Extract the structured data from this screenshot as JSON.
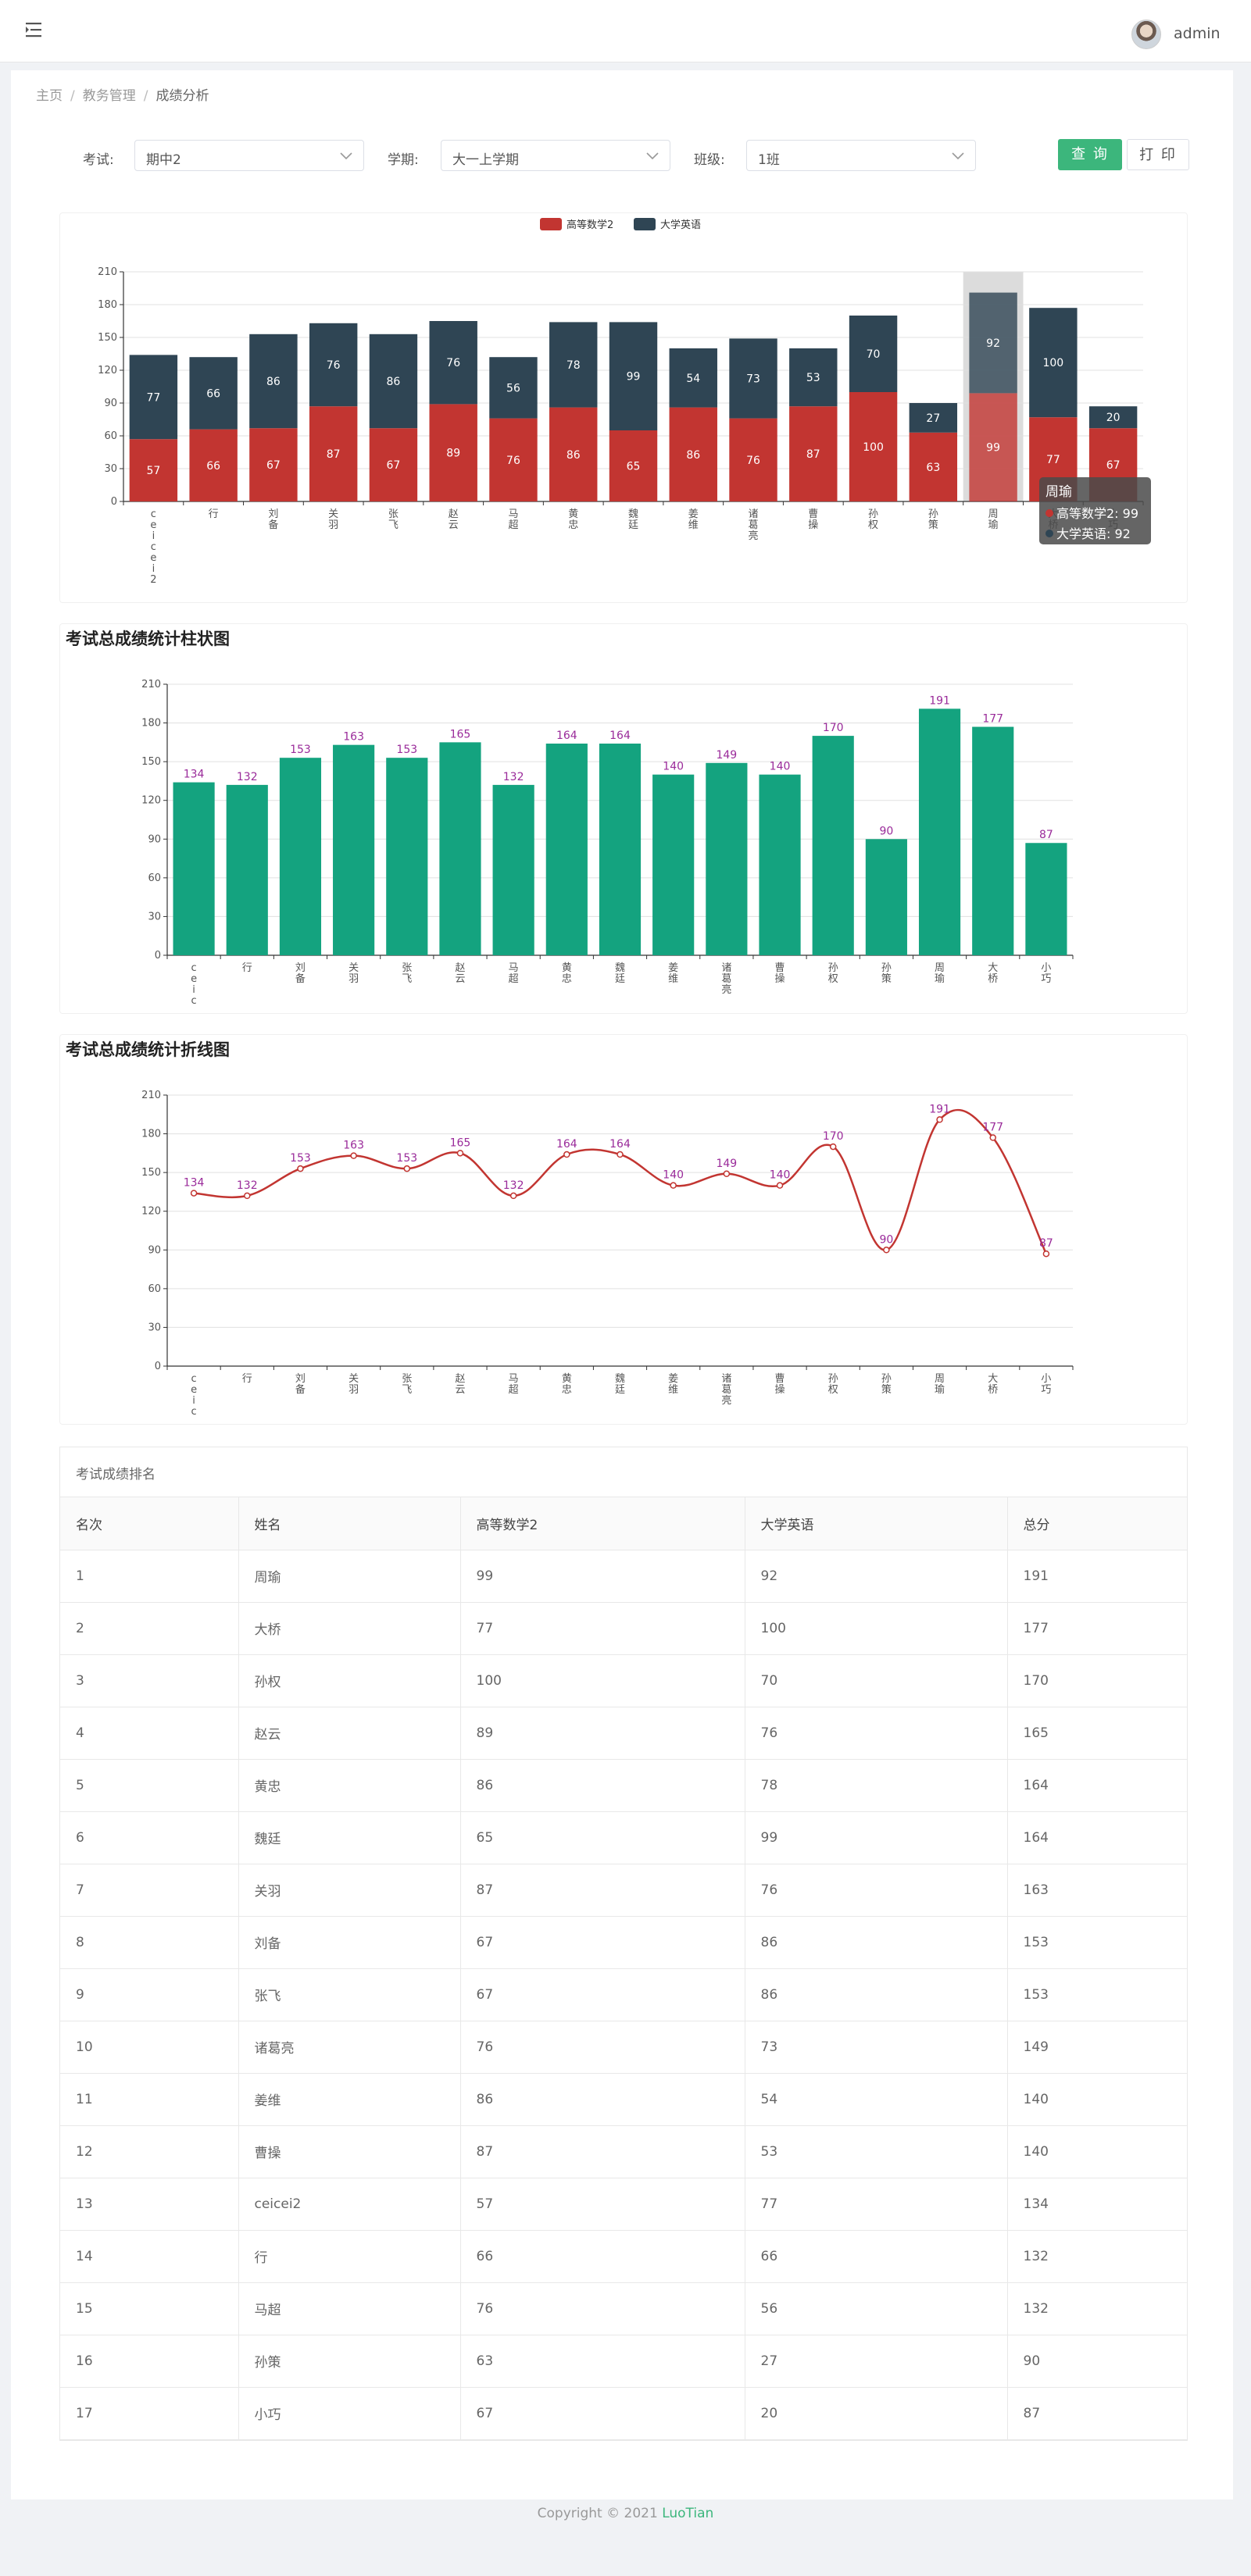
{
  "header": {
    "user": "admin"
  },
  "breadcrumb": [
    "主页",
    "教务管理",
    "成绩分析"
  ],
  "filters": {
    "exam_label": "考试:",
    "exam_value": "期中2",
    "term_label": "学期:",
    "term_value": "大一上学期",
    "class_label": "班级:",
    "class_value": "1班",
    "query_button": "查 询",
    "print_button": "打 印"
  },
  "chart_titles": {
    "bar": "考试总成绩统计柱状图",
    "line": "考试总成绩统计折线图"
  },
  "tooltip": {
    "name": "周瑜",
    "line1": "高等数学2: 99",
    "line2": "大学英语: 92"
  },
  "colors": {
    "math": "#c23531",
    "english": "#2f4554",
    "total_bar": "#14a37f",
    "total_line": "#c23531",
    "label_purple": "#9a2b9a"
  },
  "chart_data": [
    {
      "type": "bar",
      "stacked": true,
      "legend": [
        "高等数学2",
        "大学英语"
      ],
      "categories": [
        "ceicei2",
        "行",
        "刘备",
        "关羽",
        "张飞",
        "赵云",
        "马超",
        "黄忠",
        "魏廷",
        "姜维",
        "诸葛亮",
        "曹操",
        "孙权",
        "孙策",
        "周瑜",
        "大桥",
        "小巧"
      ],
      "series": [
        {
          "name": "高等数学2",
          "values": [
            57,
            66,
            67,
            87,
            67,
            89,
            76,
            86,
            65,
            86,
            76,
            87,
            100,
            63,
            99,
            77,
            67
          ]
        },
        {
          "name": "大学英语",
          "values": [
            77,
            66,
            86,
            76,
            86,
            76,
            56,
            78,
            99,
            54,
            73,
            53,
            70,
            27,
            92,
            100,
            20
          ]
        }
      ],
      "yticks": [
        0,
        30,
        60,
        90,
        120,
        150,
        180,
        210
      ],
      "ylim": [
        0,
        210
      ],
      "grid": true,
      "legend_position": "top-center"
    },
    {
      "type": "bar",
      "categories": [
        "ceicei2",
        "行",
        "刘备",
        "关羽",
        "张飞",
        "赵云",
        "马超",
        "黄忠",
        "魏廷",
        "姜维",
        "诸葛亮",
        "曹操",
        "孙权",
        "孙策",
        "周瑜",
        "大桥",
        "小巧"
      ],
      "values": [
        134,
        132,
        153,
        163,
        153,
        165,
        132,
        164,
        164,
        140,
        149,
        140,
        170,
        90,
        191,
        177,
        87
      ],
      "yticks": [
        0,
        30,
        60,
        90,
        120,
        150,
        180,
        210
      ],
      "ylim": [
        0,
        210
      ],
      "grid": true
    },
    {
      "type": "line",
      "categories": [
        "ceicei2",
        "行",
        "刘备",
        "关羽",
        "张飞",
        "赵云",
        "马超",
        "黄忠",
        "魏廷",
        "姜维",
        "诸葛亮",
        "曹操",
        "孙权",
        "孙策",
        "周瑜",
        "大桥",
        "小巧"
      ],
      "values": [
        134,
        132,
        153,
        163,
        153,
        165,
        132,
        164,
        164,
        140,
        149,
        140,
        170,
        90,
        191,
        177,
        87
      ],
      "yticks": [
        0,
        30,
        60,
        90,
        120,
        150,
        180,
        210
      ],
      "ylim": [
        0,
        210
      ],
      "grid": true,
      "smooth": true
    }
  ],
  "ranking": {
    "title": "考试成绩排名",
    "headers": [
      "名次",
      "姓名",
      "高等数学2",
      "大学英语",
      "总分"
    ],
    "rows": [
      [
        "1",
        "周瑜",
        "99",
        "92",
        "191"
      ],
      [
        "2",
        "大桥",
        "77",
        "100",
        "177"
      ],
      [
        "3",
        "孙权",
        "100",
        "70",
        "170"
      ],
      [
        "4",
        "赵云",
        "89",
        "76",
        "165"
      ],
      [
        "5",
        "黄忠",
        "86",
        "78",
        "164"
      ],
      [
        "6",
        "魏廷",
        "65",
        "99",
        "164"
      ],
      [
        "7",
        "关羽",
        "87",
        "76",
        "163"
      ],
      [
        "8",
        "刘备",
        "67",
        "86",
        "153"
      ],
      [
        "9",
        "张飞",
        "67",
        "86",
        "153"
      ],
      [
        "10",
        "诸葛亮",
        "76",
        "73",
        "149"
      ],
      [
        "11",
        "姜维",
        "86",
        "54",
        "140"
      ],
      [
        "12",
        "曹操",
        "87",
        "53",
        "140"
      ],
      [
        "13",
        "ceicei2",
        "57",
        "77",
        "134"
      ],
      [
        "14",
        "行",
        "66",
        "66",
        "132"
      ],
      [
        "15",
        "马超",
        "76",
        "56",
        "132"
      ],
      [
        "16",
        "孙策",
        "63",
        "27",
        "90"
      ],
      [
        "17",
        "小巧",
        "67",
        "20",
        "87"
      ]
    ]
  },
  "footer": {
    "text": "Copyright © 2021 ",
    "brand": "LuoTian"
  }
}
